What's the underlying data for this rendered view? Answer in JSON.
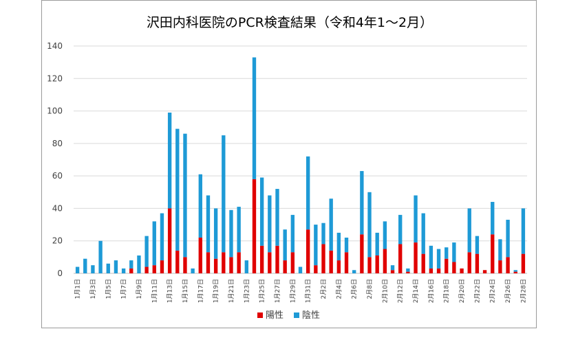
{
  "chart_data": {
    "type": "bar",
    "stacked": true,
    "title": "沢田内科医院のPCR検査結果（令和4年1～2月）",
    "xlabel": "",
    "ylabel": "",
    "ylim": [
      0,
      140
    ],
    "yticks": [
      0,
      20,
      40,
      60,
      80,
      100,
      120,
      140
    ],
    "grid": true,
    "legend_position": "bottom",
    "categories": [
      "1月1日",
      "1月2日",
      "1月3日",
      "1月4日",
      "1月5日",
      "1月6日",
      "1月7日",
      "1月8日",
      "1月9日",
      "1月10日",
      "1月11日",
      "1月12日",
      "1月13日",
      "1月14日",
      "1月15日",
      "1月16日",
      "1月17日",
      "1月18日",
      "1月19日",
      "1月20日",
      "1月21日",
      "1月22日",
      "1月23日",
      "1月24日",
      "1月25日",
      "1月26日",
      "1月27日",
      "1月28日",
      "1月29日",
      "1月30日",
      "1月31日",
      "2月1日",
      "2月2日",
      "2月3日",
      "2月4日",
      "2月5日",
      "2月6日",
      "2月7日",
      "2月8日",
      "2月9日",
      "2月10日",
      "2月11日",
      "2月12日",
      "2月13日",
      "2月14日",
      "2月15日",
      "2月16日",
      "2月17日",
      "2月18日",
      "2月19日",
      "2月20日",
      "2月21日",
      "2月22日",
      "2月23日",
      "2月24日",
      "2月25日",
      "2月26日",
      "2月27日",
      "2月28日"
    ],
    "x_tick_labels": [
      "1月1日",
      "1月3日",
      "1月5日",
      "1月7日",
      "1月9日",
      "1月11日",
      "1月13日",
      "1月15日",
      "1月17日",
      "1月19日",
      "1月21日",
      "1月23日",
      "1月25日",
      "1月27日",
      "1月29日",
      "1月31日",
      "2月2日",
      "2月4日",
      "2月6日",
      "2月8日",
      "2月10日",
      "2月12日",
      "2月14日",
      "2月16日",
      "2月18日",
      "2月20日",
      "2月22日",
      "2月24日",
      "2月26日",
      "2月28日"
    ],
    "series": [
      {
        "name": "陽性",
        "color": "#e00000",
        "values": [
          0,
          0,
          0,
          0,
          0,
          0,
          0,
          3,
          0,
          4,
          5,
          8,
          40,
          14,
          10,
          0,
          22,
          13,
          9,
          13,
          10,
          13,
          0,
          58,
          17,
          13,
          17,
          8,
          13,
          0,
          27,
          5,
          18,
          14,
          8,
          13,
          0,
          24,
          10,
          11,
          15,
          2,
          18,
          1,
          19,
          12,
          3,
          3,
          9,
          7,
          3,
          13,
          12,
          2,
          24,
          8,
          10,
          1,
          12
        ]
      },
      {
        "name": "陰性",
        "color": "#1e9ad6",
        "values": [
          4,
          9,
          5,
          20,
          6,
          8,
          3,
          5,
          11,
          19,
          27,
          29,
          59,
          75,
          76,
          3,
          39,
          35,
          31,
          72,
          29,
          28,
          8,
          75,
          42,
          35,
          35,
          19,
          23,
          4,
          45,
          25,
          13,
          32,
          17,
          9,
          2,
          39,
          40,
          14,
          17,
          3,
          18,
          2,
          29,
          25,
          14,
          12,
          7,
          12,
          0,
          27,
          11,
          0,
          20,
          13,
          23,
          1,
          28
        ]
      }
    ]
  }
}
